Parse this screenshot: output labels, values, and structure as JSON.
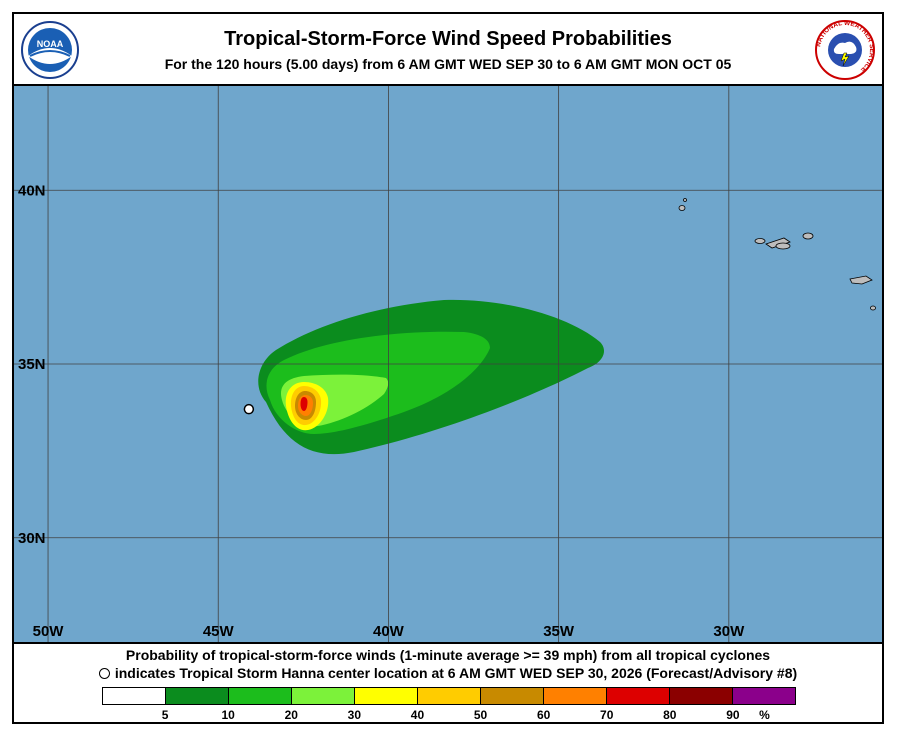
{
  "header": {
    "title": "Tropical-Storm-Force Wind Speed Probabilities",
    "subtitle": "For the 120 hours (5.00 days) from 6 AM GMT WED SEP 30 to 6 AM GMT MON OCT 05",
    "left_logo": "noaa-logo",
    "left_logo_text": "NOAA",
    "right_logo": "national-weather-service-logo",
    "right_logo_text": "NATIONAL WEATHER SERVICE"
  },
  "map": {
    "ocean_color": "#6fa6cc",
    "lon_range": [
      -51,
      -25.5
    ],
    "lat_range": [
      27,
      43
    ],
    "lon_ticks": [
      {
        "lon": -50,
        "label": "50W"
      },
      {
        "lon": -45,
        "label": "45W"
      },
      {
        "lon": -40,
        "label": "40W"
      },
      {
        "lon": -35,
        "label": "35W"
      },
      {
        "lon": -30,
        "label": "30W"
      }
    ],
    "lat_ticks": [
      {
        "lat": 40,
        "label": "40N"
      },
      {
        "lat": 35,
        "label": "35N"
      },
      {
        "lat": 30,
        "label": "30N"
      }
    ],
    "storm_center": {
      "lon": -44.1,
      "lat": 33.7
    }
  },
  "footer": {
    "line1": "Probability of tropical-storm-force winds (1-minute average >= 39 mph) from all tropical cyclones",
    "line2": "indicates Tropical Storm Hanna center location at 6 AM GMT WED SEP 30, 2026 (Forecast/Advisory #8)"
  },
  "legend": {
    "colors": [
      "#ffffff",
      "#0b8c1e",
      "#1cbd1c",
      "#7cf23a",
      "#ffff00",
      "#ffcc00",
      "#c88a00",
      "#ff8000",
      "#dd0000",
      "#8b0000",
      "#8b008b"
    ],
    "labels": [
      "5",
      "10",
      "20",
      "30",
      "40",
      "50",
      "60",
      "70",
      "80",
      "90",
      "%"
    ]
  }
}
